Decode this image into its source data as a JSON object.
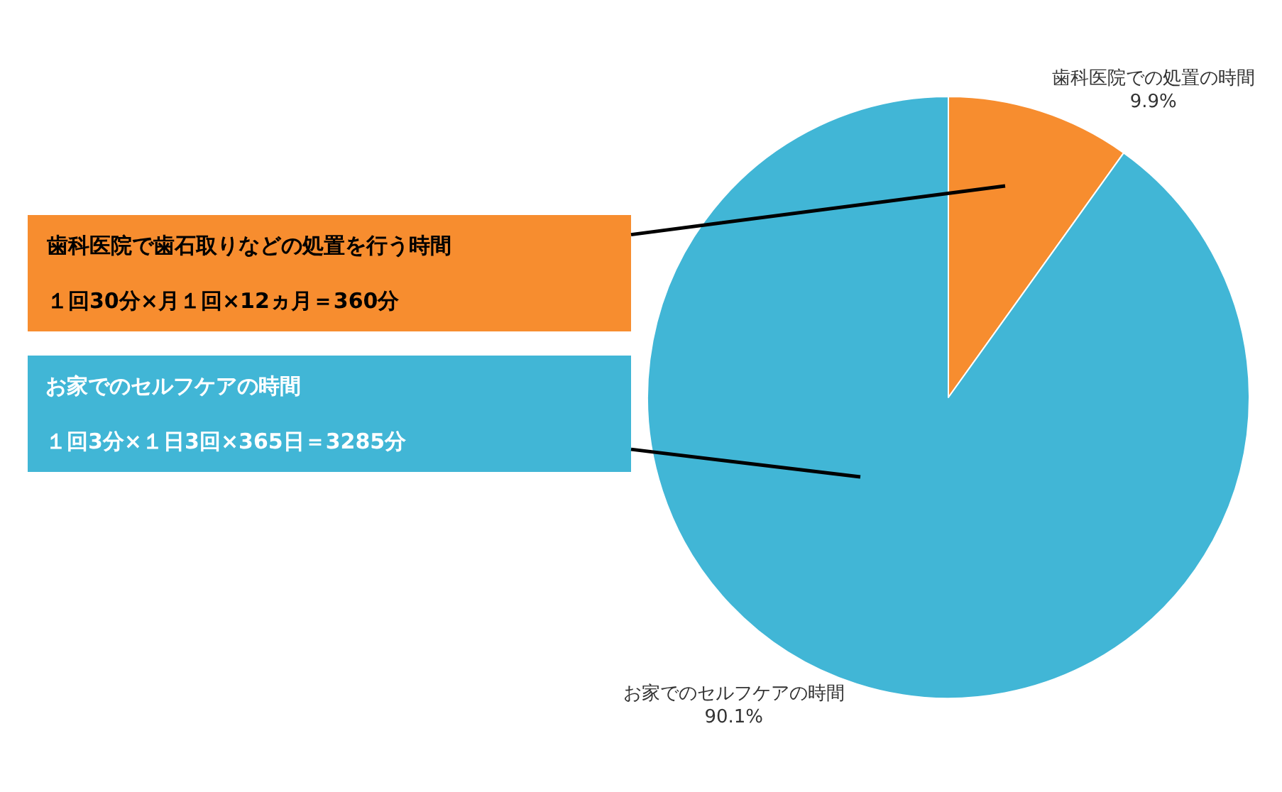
{
  "chart_data": {
    "type": "pie",
    "categories": [
      "歯科医院での処置の時間",
      "お家でのセルフケアの時間"
    ],
    "values": [
      9.9,
      90.1
    ],
    "value_labels": [
      "9.9%",
      "90.1%"
    ],
    "colors": [
      "#f78d2f",
      "#41b6d6"
    ],
    "annotations": [
      "歯科医院で歯石取りなどの処置を行う時間",
      "１回30分×月１回×12ヵ月＝360分",
      "お家でのセルフケアの時間",
      "１回3分×１日3回×365日＝3285分"
    ],
    "legend": false
  }
}
